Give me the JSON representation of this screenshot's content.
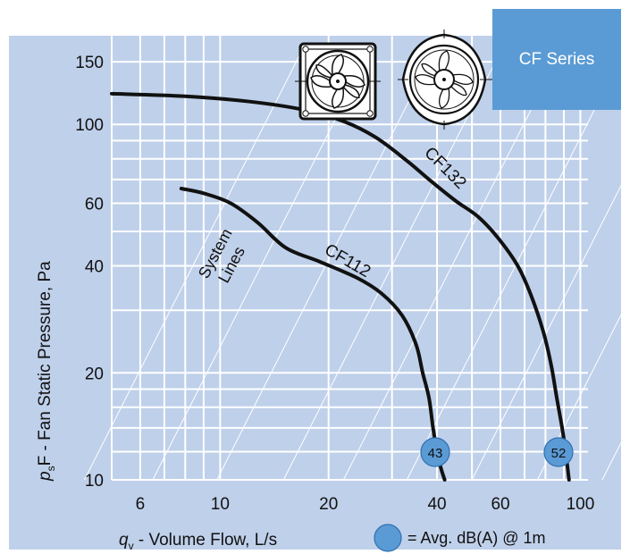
{
  "series_tab": "CF Series",
  "chart_data": {
    "type": "line",
    "xscale": "log",
    "yscale": "log",
    "xlim": [
      5,
      105
    ],
    "ylim": [
      10,
      160
    ],
    "x_ticks": [
      6,
      10,
      20,
      40,
      60,
      100
    ],
    "y_ticks": [
      10,
      20,
      40,
      60,
      100,
      150
    ],
    "grid": true,
    "xlabel": {
      "symbol": "q",
      "sub": "v",
      "text": " - Volume Flow, L/s"
    },
    "ylabel": {
      "symbol": "p",
      "sub": "s",
      "text": "F - Fan Static Pressure, Pa"
    },
    "system_lines_label": [
      "System",
      "Lines"
    ],
    "legend": {
      "text": "= Avg. dB(A) @ 1m",
      "color": "#5b9bd5"
    },
    "series": [
      {
        "name": "CF132",
        "badge": "52",
        "x": [
          5,
          8,
          12,
          17,
          22,
          27,
          33,
          38,
          45,
          52,
          59,
          67,
          73,
          79,
          83,
          86,
          89,
          91,
          93
        ],
        "y": [
          122,
          120,
          116,
          110,
          102,
          92,
          79,
          70,
          61,
          55,
          48,
          40,
          33,
          26,
          21,
          17,
          14,
          12,
          10
        ]
      },
      {
        "name": "CF112",
        "badge": "43",
        "x": [
          7.8,
          9,
          10.7,
          12.7,
          15.2,
          19,
          24,
          28,
          32,
          35,
          36.5,
          38,
          39,
          40,
          41,
          42
        ],
        "y": [
          66,
          64,
          60,
          53,
          45,
          41,
          37,
          33.5,
          29,
          24,
          20,
          17,
          14,
          12,
          10.8,
          10
        ]
      }
    ]
  }
}
